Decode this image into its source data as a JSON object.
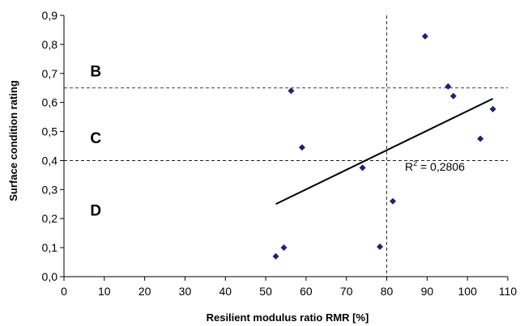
{
  "chart_data": {
    "type": "scatter",
    "xlabel": "Resilient modulus ratio RMR [%]",
    "ylabel": "Surface condition rating",
    "xlim": [
      0,
      110
    ],
    "ylim": [
      0,
      0.9
    ],
    "x_ticks": [
      0,
      10,
      20,
      30,
      40,
      50,
      60,
      70,
      80,
      90,
      100,
      110
    ],
    "x_tick_labels": [
      "0",
      "10",
      "20",
      "30",
      "40",
      "50",
      "60",
      "70",
      "80",
      "90",
      "100",
      "110"
    ],
    "y_ticks": [
      0,
      0.1,
      0.2,
      0.3,
      0.4,
      0.5,
      0.6,
      0.7,
      0.8,
      0.9
    ],
    "y_tick_labels": [
      "0,0",
      "0,1",
      "0,2",
      "0,3",
      "0,4",
      "0,5",
      "0,6",
      "0,7",
      "0,8",
      "0,9"
    ],
    "grid": false,
    "marker_color": "#1f1f7a",
    "points": [
      {
        "x": 52.5,
        "y": 0.07
      },
      {
        "x": 54.5,
        "y": 0.1
      },
      {
        "x": 56.3,
        "y": 0.64
      },
      {
        "x": 59.0,
        "y": 0.445
      },
      {
        "x": 74.0,
        "y": 0.375
      },
      {
        "x": 78.3,
        "y": 0.103
      },
      {
        "x": 81.5,
        "y": 0.26
      },
      {
        "x": 89.5,
        "y": 0.828
      },
      {
        "x": 95.2,
        "y": 0.655
      },
      {
        "x": 96.5,
        "y": 0.622
      },
      {
        "x": 103.2,
        "y": 0.475
      },
      {
        "x": 106.3,
        "y": 0.577
      }
    ],
    "trendline": {
      "x": [
        52.5,
        106.3
      ],
      "y": [
        0.25,
        0.613
      ],
      "color": "#000000",
      "label": "R² = 0,2806",
      "label_base": "R",
      "label_sup": "2",
      "label_rest": " = 0,2806",
      "label_anchor": {
        "x": 84.5,
        "y": 0.365
      }
    },
    "reference_lines": [
      {
        "orientation": "horizontal",
        "value": 0.65,
        "style": "dashed"
      },
      {
        "orientation": "horizontal",
        "value": 0.4,
        "style": "dashed"
      },
      {
        "orientation": "vertical",
        "value": 80,
        "style": "dashed"
      }
    ],
    "zones": [
      {
        "label": "B",
        "x": 6.5,
        "y": 0.69
      },
      {
        "label": "C",
        "x": 6.5,
        "y": 0.46
      },
      {
        "label": "D",
        "x": 6.5,
        "y": 0.21
      }
    ]
  }
}
